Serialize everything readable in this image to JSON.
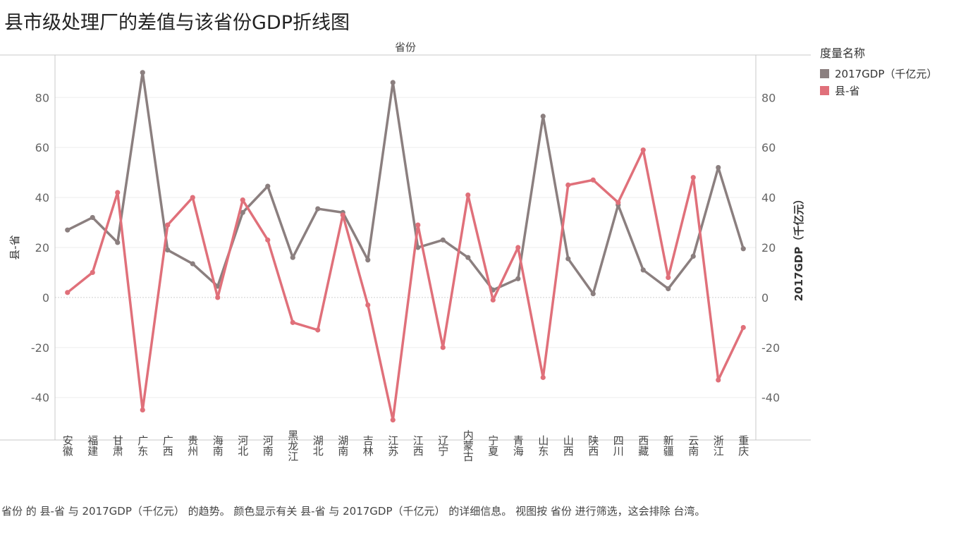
{
  "title": "县市级处理厂的差值与该省份GDP折线图",
  "legend": {
    "title": "度量名称",
    "items": [
      {
        "label": "2017GDP（千亿元）",
        "color": "#8b7f7f"
      },
      {
        "label": "县-省",
        "color": "#e0707a"
      }
    ]
  },
  "caption": "省份 的 县-省 与 2017GDP（千亿元） 的趋势。 颜色显示有关 县-省 与 2017GDP（千亿元） 的详细信息。 视图按 省份 进行筛选，这会排除 台湾。",
  "chart_data": {
    "type": "line",
    "title": "县市级处理厂的差值与该省份GDP折线图",
    "column_header": "省份",
    "xlabel": "",
    "categories": [
      "安徽",
      "福建",
      "甘肃",
      "广东",
      "广西",
      "贵州",
      "海南",
      "河北",
      "河南",
      "黑龙江",
      "湖北",
      "湖南",
      "吉林",
      "江苏",
      "江西",
      "辽宁",
      "内蒙古",
      "宁夏",
      "青海",
      "山东",
      "山西",
      "陕西",
      "四川",
      "西藏",
      "新疆",
      "云南",
      "浙江",
      "重庆"
    ],
    "ylabel_left": "县-省",
    "ylabel_right": "2017GDP（千亿元）",
    "ylim": [
      -57,
      97
    ],
    "yticks": [
      -40,
      -20,
      0,
      20,
      40,
      60,
      80
    ],
    "grid": true,
    "legend_position": "right",
    "series": [
      {
        "name": "2017GDP（千亿元）",
        "axis": "right",
        "color": "#8b7f7f",
        "values": [
          27,
          32,
          22,
          90,
          19,
          13.5,
          4.5,
          34,
          44.5,
          16,
          35.5,
          34,
          15,
          86,
          20,
          23,
          16,
          3,
          7.5,
          72.5,
          15.5,
          1.5,
          37,
          11,
          3.5,
          16.5,
          52,
          19.5
        ]
      },
      {
        "name": "县-省",
        "axis": "left",
        "color": "#e0707a",
        "values": [
          2,
          10,
          42,
          -45,
          29,
          40,
          0,
          39,
          23,
          -10,
          -13,
          33,
          -3,
          -49,
          29,
          -20,
          41,
          -1,
          20,
          -32,
          45,
          47,
          38,
          59,
          8,
          48,
          -33,
          -12
        ]
      }
    ]
  }
}
